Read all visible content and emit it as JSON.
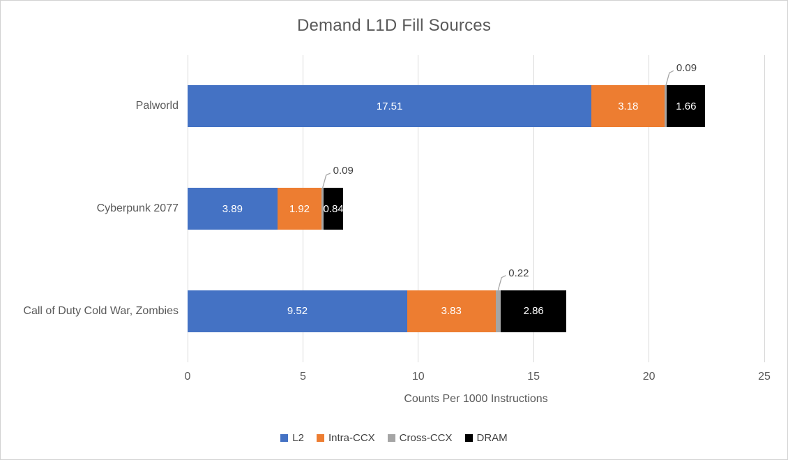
{
  "chart_data": {
    "type": "bar",
    "orientation": "horizontal",
    "stacked": true,
    "title": "Demand L1D Fill Sources",
    "xlabel": "Counts Per 1000 Instructions",
    "categories": [
      "Palworld",
      "Cyberpunk 2077",
      "Call of Duty Cold War, Zombies"
    ],
    "series": [
      {
        "name": "L2",
        "color": "#4472C4",
        "values": [
          17.51,
          3.89,
          9.52
        ],
        "label_placement": "inside"
      },
      {
        "name": "Intra-CCX",
        "color": "#ED7D31",
        "values": [
          3.18,
          1.92,
          3.83
        ],
        "label_placement": "inside"
      },
      {
        "name": "Cross-CCX",
        "color": "#A5A5A5",
        "values": [
          0.09,
          0.09,
          0.22
        ],
        "label_placement": "callout"
      },
      {
        "name": "DRAM",
        "color": "#000000",
        "values": [
          1.66,
          0.84,
          2.86
        ],
        "label_placement": "inside"
      }
    ],
    "xlim": [
      0,
      25
    ],
    "xticks": [
      0,
      5,
      10,
      15,
      20,
      25
    ],
    "grid": "vertical",
    "legend_position": "bottom",
    "colors": {
      "title_text": "#595959",
      "axis_text": "#595959",
      "data_label_inside": "#ffffff",
      "data_label_callout": "#404040",
      "gridline": "#d9d9d9",
      "leader_line": "#a6a6a6",
      "border": "#d2d2d2",
      "background": "#ffffff"
    }
  }
}
